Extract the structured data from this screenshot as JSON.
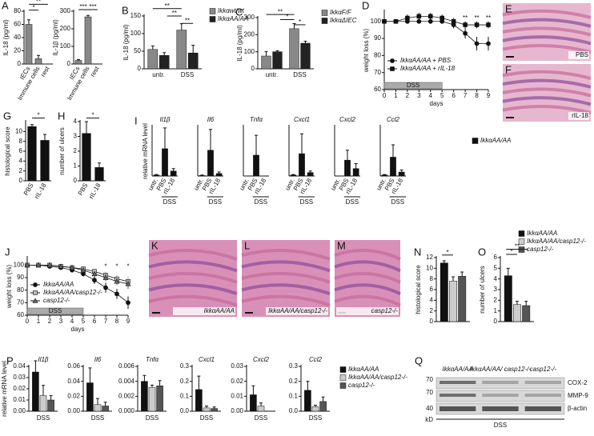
{
  "chart_data": [
    {
      "type": "bar",
      "panel": "A",
      "ylabel": "IL-18 (pg/ml)",
      "categories": [
        "IECs",
        "Immune cells",
        "rest"
      ],
      "values": [
        60,
        8,
        0
      ],
      "errors": [
        7,
        5,
        0
      ],
      "color": "#888",
      "ylim": [
        0,
        80
      ],
      "yticks": [
        0,
        20,
        40,
        60,
        80
      ],
      "annotations": [
        "**",
        "*"
      ]
    },
    {
      "type": "bar",
      "ylabel": "IL-1β (pg/ml)",
      "categories": [
        "IECs",
        "Immune cells",
        "rest"
      ],
      "values": [
        20,
        268,
        0
      ],
      "errors": [
        5,
        8,
        0
      ],
      "color": "#888",
      "ylim": [
        0,
        300
      ],
      "yticks": [
        0,
        100,
        200,
        300
      ],
      "annotations": [
        "***",
        "***"
      ]
    },
    {
      "type": "bar",
      "panel": "B",
      "ylabel": "IL-18 (pg/ml)",
      "categories": [
        "untr.",
        "DSS"
      ],
      "series": [
        {
          "name": "Ikkαwt/wt",
          "color": "#888",
          "values": [
            55,
            110
          ],
          "errors": [
            10,
            18
          ]
        },
        {
          "name": "IkkαAA/AA",
          "color": "#222",
          "values": [
            38,
            45
          ],
          "errors": [
            8,
            22
          ]
        }
      ],
      "ylim": [
        0,
        150
      ],
      "yticks": [
        0,
        50,
        100,
        150
      ],
      "legend": "right",
      "annotations": [
        "**",
        "**",
        "**"
      ]
    },
    {
      "type": "bar",
      "panel": "C",
      "ylabel": "IL-18 (pg/ml)",
      "categories": [
        "untr.",
        "DSS"
      ],
      "series": [
        {
          "name": "IkkαF/F",
          "color": "#888",
          "values": [
            75,
            235
          ],
          "errors": [
            25,
            30
          ]
        },
        {
          "name": "IkkαΔIEC",
          "color": "#222",
          "values": [
            100,
            150
          ],
          "errors": [
            6,
            12
          ]
        }
      ],
      "ylim": [
        0,
        300
      ],
      "yticks": [
        0,
        100,
        200,
        300
      ],
      "legend": "right",
      "annotations": [
        "**",
        "*",
        "*"
      ]
    },
    {
      "type": "line",
      "panel": "D",
      "ylabel": "weight loss (%)",
      "xlabel": "days",
      "x": [
        0,
        1,
        2,
        3,
        4,
        5,
        6,
        7,
        8,
        9
      ],
      "series": [
        {
          "name": "IkkαAA/AA + PBS",
          "color": "#111",
          "marker": "circle",
          "values": [
            100,
            100,
            100,
            100,
            100,
            100,
            98,
            93,
            87,
            87
          ],
          "errors": [
            0,
            1,
            1,
            1,
            1,
            1,
            2,
            3,
            4,
            4
          ]
        },
        {
          "name": "IkkαAA/AA + rIL-18",
          "color": "#111",
          "marker": "square",
          "values": [
            100,
            100,
            102,
            103,
            103,
            102,
            100,
            98,
            98,
            98
          ],
          "errors": [
            0,
            1,
            2,
            2,
            2,
            2,
            2,
            2,
            2,
            2
          ]
        }
      ],
      "xlim": [
        0,
        9
      ],
      "xticks": [
        0,
        1,
        2,
        3,
        4,
        5,
        6,
        7,
        8,
        9
      ],
      "ylim": [
        60,
        106
      ],
      "yticks": [
        60,
        70,
        80,
        90,
        100
      ],
      "band": {
        "label": "DSS",
        "range": [
          0,
          5
        ]
      },
      "legend": "lower left",
      "annotations": [
        "**",
        "**",
        "**"
      ]
    },
    {
      "type": "bar",
      "panel": "G",
      "ylabel": "histological score",
      "categories": [
        "PBS",
        "rIL-18"
      ],
      "values": [
        11,
        8.2
      ],
      "errors": [
        0.4,
        1.2
      ],
      "color": "#111",
      "ylim": [
        0,
        12
      ],
      "yticks": [
        0,
        2,
        4,
        6,
        8,
        10
      ],
      "annotations": [
        "*"
      ]
    },
    {
      "type": "bar",
      "panel": "H",
      "ylabel": "number of ulcers",
      "categories": [
        "PBS",
        "rIL-18"
      ],
      "values": [
        3.2,
        0.9
      ],
      "errors": [
        0.8,
        0.3
      ],
      "color": "#111",
      "ylim": [
        0,
        4
      ],
      "yticks": [
        0,
        1,
        2,
        3,
        4
      ],
      "annotations": [
        "*"
      ]
    },
    {
      "type": "bar",
      "panel": "I",
      "title": "Il1β",
      "ylabel": "relative mRNA level",
      "xlabel": "DSS",
      "categories": [
        "untr.",
        "PBS",
        "rIL-18"
      ],
      "values": [
        0.02,
        0.55,
        0.1
      ],
      "errors": [
        0.01,
        0.42,
        0.05
      ],
      "color": "#111",
      "ylim": [
        0,
        1
      ]
    },
    {
      "type": "bar",
      "title": "Il6",
      "xlabel": "DSS",
      "categories": [
        "untr.",
        "PBS",
        "rIL-18"
      ],
      "values": [
        0.01,
        0.52,
        0.05
      ],
      "errors": [
        0.01,
        0.42,
        0.03
      ],
      "color": "#111",
      "ylim": [
        0,
        1
      ]
    },
    {
      "type": "bar",
      "title": "Tnfα",
      "xlabel": "DSS",
      "categories": [
        "untr.",
        "PBS",
        "rIL-18"
      ],
      "values": [
        0,
        0.42,
        0
      ],
      "errors": [
        0,
        0.4,
        0
      ],
      "color": "#111",
      "ylim": [
        0,
        1
      ]
    },
    {
      "type": "bar",
      "title": "Cxcl1",
      "xlabel": "DSS",
      "categories": [
        "untr.",
        "PBS",
        "rIL-18"
      ],
      "values": [
        0.02,
        0.45,
        0.07
      ],
      "errors": [
        0.01,
        0.4,
        0.03
      ],
      "color": "#111",
      "ylim": [
        0,
        1
      ]
    },
    {
      "type": "bar",
      "title": "Cxcl2",
      "xlabel": "DSS",
      "categories": [
        "untr.",
        "PBS",
        "rIL-18"
      ],
      "values": [
        0,
        0.32,
        0.15
      ],
      "errors": [
        0,
        0.2,
        0.1
      ],
      "color": "#111",
      "ylim": [
        0,
        1
      ]
    },
    {
      "type": "bar",
      "title": "Ccl2",
      "xlabel": "DSS",
      "categories": [
        "untr.",
        "PBS",
        "rIL-18"
      ],
      "series": [
        {
          "name": "IkkαAA/AA",
          "color": "#111",
          "values": [
            0.02,
            0.38,
            0.08
          ],
          "errors": [
            0.01,
            0.25,
            0.04
          ]
        }
      ],
      "ylim": [
        0,
        1
      ],
      "legend": "right"
    },
    {
      "type": "line",
      "panel": "J",
      "ylabel": "weight loss (%)",
      "xlabel": "days",
      "x": [
        0,
        1,
        2,
        3,
        4,
        5,
        6,
        7,
        8,
        9
      ],
      "series": [
        {
          "name": "IkkαAA/AA",
          "color": "#111",
          "marker": "circle",
          "values": [
            100,
            100,
            99,
            98,
            96,
            93,
            88,
            82,
            77,
            70
          ],
          "errors": [
            0,
            0.5,
            1,
            1,
            1.5,
            2,
            3,
            4,
            4,
            5
          ]
        },
        {
          "name": "IkkαAA/AA/casp12-/-",
          "color": "#bbb",
          "marker": "square",
          "values": [
            100,
            100,
            100,
            99,
            98,
            97,
            95,
            92,
            89,
            87
          ],
          "errors": [
            0,
            0.5,
            1,
            1,
            1,
            2,
            2,
            3,
            3,
            4
          ]
        },
        {
          "name": "casp12-/-",
          "color": "#666",
          "marker": "triangle",
          "values": [
            100,
            100,
            100,
            99,
            98,
            96,
            93,
            90,
            87,
            85
          ],
          "errors": [
            0,
            0.5,
            1,
            1,
            1,
            2,
            2,
            3,
            3,
            4
          ]
        }
      ],
      "xlim": [
        0,
        9
      ],
      "xticks": [
        0,
        1,
        2,
        3,
        4,
        5,
        6,
        7,
        8,
        9
      ],
      "ylim": [
        60,
        106
      ],
      "yticks": [
        60,
        70,
        80,
        90,
        100
      ],
      "band": {
        "label": "DSS",
        "range": [
          0,
          5
        ]
      },
      "legend": "lower left",
      "annotations": [
        "*",
        "*",
        "*"
      ]
    },
    {
      "type": "bar",
      "panel": "N",
      "ylabel": "histological score",
      "values": [
        11,
        7.6,
        8.5
      ],
      "errors": [
        0.4,
        0.8,
        0.8
      ],
      "colors": [
        "#111",
        "#ccc",
        "#555"
      ],
      "ylim": [
        0,
        12
      ],
      "yticks": [
        0,
        2,
        4,
        6,
        8,
        10,
        12
      ],
      "annotations": [
        "*"
      ]
    },
    {
      "type": "bar",
      "panel": "O",
      "ylabel": "number of ulcers",
      "series": [
        {
          "name": "IkkαAA/AA",
          "color": "#111",
          "values": [
            4.3
          ],
          "errors": [
            0.7
          ]
        },
        {
          "name": "IkkαAA/AA/casp12-/-",
          "color": "#ccc",
          "values": [
            1.6
          ],
          "errors": [
            0.3
          ]
        },
        {
          "name": "casp12-/-",
          "color": "#555",
          "values": [
            1.5
          ],
          "errors": [
            0.4
          ]
        }
      ],
      "ylim": [
        0,
        6
      ],
      "yticks": [
        0,
        1,
        2,
        3,
        4,
        5,
        6
      ],
      "legend": "right",
      "annotations": [
        "*",
        "**"
      ]
    },
    {
      "type": "bar",
      "panel": "P",
      "title": "Il1β",
      "ylabel": "relative mRNA level",
      "xlabel": "DSS",
      "values": [
        0.035,
        0.014,
        0.01
      ],
      "errors": [
        0.01,
        0.009,
        0.004
      ],
      "colors": [
        "#111",
        "#ccc",
        "#555"
      ],
      "ylim": [
        0,
        0.04
      ],
      "yticks": [
        {
          "value": 0,
          "label": "0.00"
        },
        0.01,
        0.02,
        0.03,
        {
          "value": 0.04,
          "label": "0.04"
        }
      ]
    },
    {
      "type": "bar",
      "title": "Il6",
      "xlabel": "DSS",
      "values": [
        0.038,
        0.009,
        0.007
      ],
      "errors": [
        0.02,
        0.008,
        0.005
      ],
      "colors": [
        "#111",
        "#ccc",
        "#555"
      ],
      "ylim": [
        0,
        0.06
      ],
      "yticks": [
        {
          "value": 0,
          "label": "0.00"
        },
        0.02,
        0.04,
        0.06
      ]
    },
    {
      "type": "bar",
      "title": "Tnfα",
      "xlabel": "DSS",
      "values": [
        0.004,
        0.0032,
        0.0034
      ],
      "errors": [
        0.0008,
        0.0003,
        0.0007
      ],
      "colors": [
        "#111",
        "#ccc",
        "#555"
      ],
      "ylim": [
        0,
        0.006
      ],
      "yticks": [
        {
          "value": 0,
          "label": "0.000"
        },
        0.002,
        0.004,
        0.006
      ]
    },
    {
      "type": "bar",
      "title": "Cxcl1",
      "xlabel": "DSS",
      "values": [
        0.145,
        0.022,
        0.018
      ],
      "errors": [
        0.09,
        0.012,
        0.01
      ],
      "colors": [
        "#111",
        "#ccc",
        "#555"
      ],
      "ylim": [
        0,
        0.3
      ],
      "yticks": [
        {
          "value": 0,
          "label": "0.0"
        },
        0.1,
        0.2,
        0.3
      ]
    },
    {
      "type": "bar",
      "title": "Cxcl2",
      "xlabel": "DSS",
      "values": [
        0.011,
        0.0035,
        0
      ],
      "errors": [
        0.006,
        0.002,
        0
      ],
      "colors": [
        "#111",
        "#ccc",
        "#555"
      ],
      "ylim": [
        0,
        0.03
      ],
      "yticks": [
        {
          "value": 0,
          "label": "0.00"
        },
        0.01,
        0.02,
        0.03
      ]
    },
    {
      "type": "bar",
      "title": "Ccl2",
      "xlabel": "DSS",
      "series": [
        {
          "name": "IkkαAA/AA",
          "color": "#111",
          "values": [
            0.14
          ],
          "errors": [
            0.06
          ]
        },
        {
          "name": "IkkαAA/AA/casp12-/-",
          "color": "#ccc",
          "values": [
            0.03
          ],
          "errors": [
            0.01
          ]
        },
        {
          "name": "casp12-/-",
          "color": "#555",
          "values": [
            0.065
          ],
          "errors": [
            0.03
          ]
        }
      ],
      "ylim": [
        0,
        0.3
      ],
      "yticks": [
        {
          "value": 0,
          "label": "0.0"
        },
        0.1,
        0.2,
        0.3
      ],
      "legend": "right"
    }
  ],
  "images": [
    {
      "panel": "E",
      "label": "PBS"
    },
    {
      "panel": "F",
      "label": "rIL-18"
    },
    {
      "panel": "K",
      "label": "IkkαAA/AA"
    },
    {
      "panel": "L",
      "label": "IkkαAA/AA/casp12-/-"
    },
    {
      "panel": "M",
      "label": "casp12-/-"
    }
  ],
  "blot": {
    "panel": "Q",
    "columns": [
      "IkkαAA/AA",
      "IkkαAA/AA/ casp12-/-",
      "casp12-/-"
    ],
    "rows": [
      "COX-2",
      "MMP-9",
      "β-actin"
    ],
    "markers": [
      "70",
      "70",
      "40"
    ],
    "unit": "kD",
    "xlabel": "DSS"
  }
}
